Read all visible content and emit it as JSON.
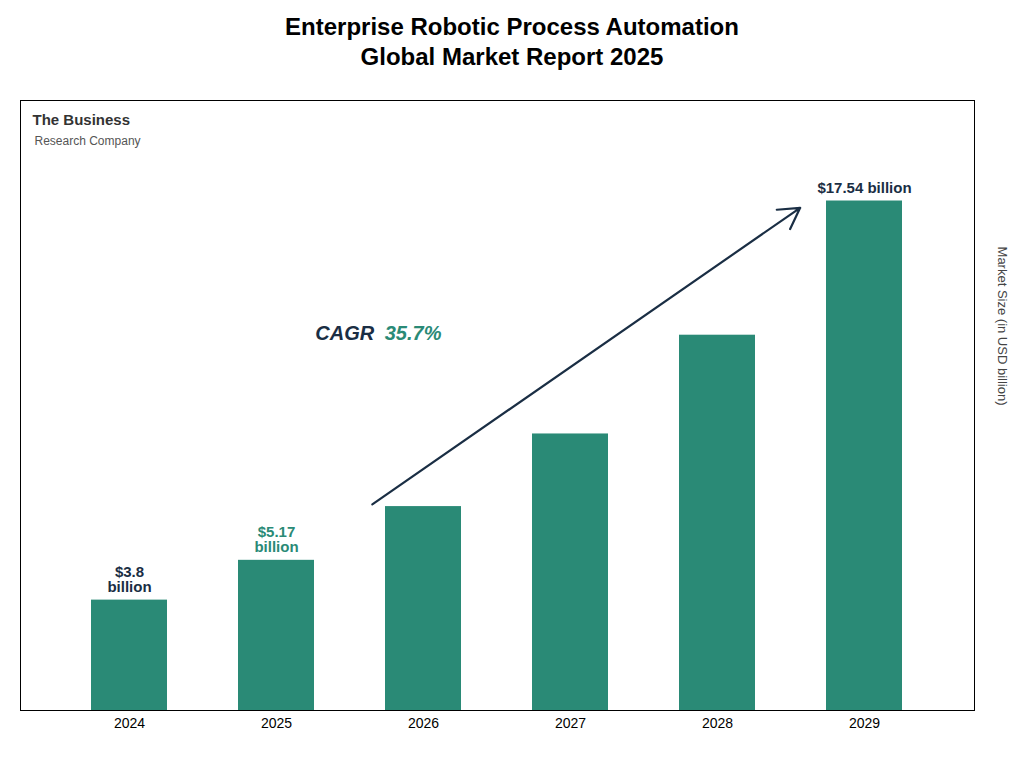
{
  "chart_data": {
    "type": "bar",
    "title": "Enterprise Robotic Process Automation\nGlobal Market Report 2025",
    "categories": [
      "2024",
      "2025",
      "2026",
      "2027",
      "2028",
      "2029"
    ],
    "values": [
      3.8,
      5.17,
      7.02,
      9.52,
      12.92,
      17.54
    ],
    "color": "#2a8a76",
    "ylabel": "Market Size (in USD billion)",
    "ylim": [
      0,
      21
    ],
    "tick_labels": "x",
    "annotations": [
      {
        "category": "2024",
        "text": "$3.8\nbillion",
        "color": "#1a2e44"
      },
      {
        "category": "2025",
        "text": "$5.17\nbillion",
        "color": "#2a8a76"
      },
      {
        "category": "2029",
        "text": "$17.54 billion",
        "color": "#1a2e44"
      },
      {
        "text": [
          "CAGR ",
          "35.7%"
        ],
        "colors": [
          "#1a2e44",
          "#2a8a76"
        ],
        "arrow": {
          "from": "2026",
          "to": "2029",
          "color": "#1a2e44"
        }
      },
      {
        "text": [
          "The Business",
          "Research Company"
        ]
      }
    ]
  }
}
